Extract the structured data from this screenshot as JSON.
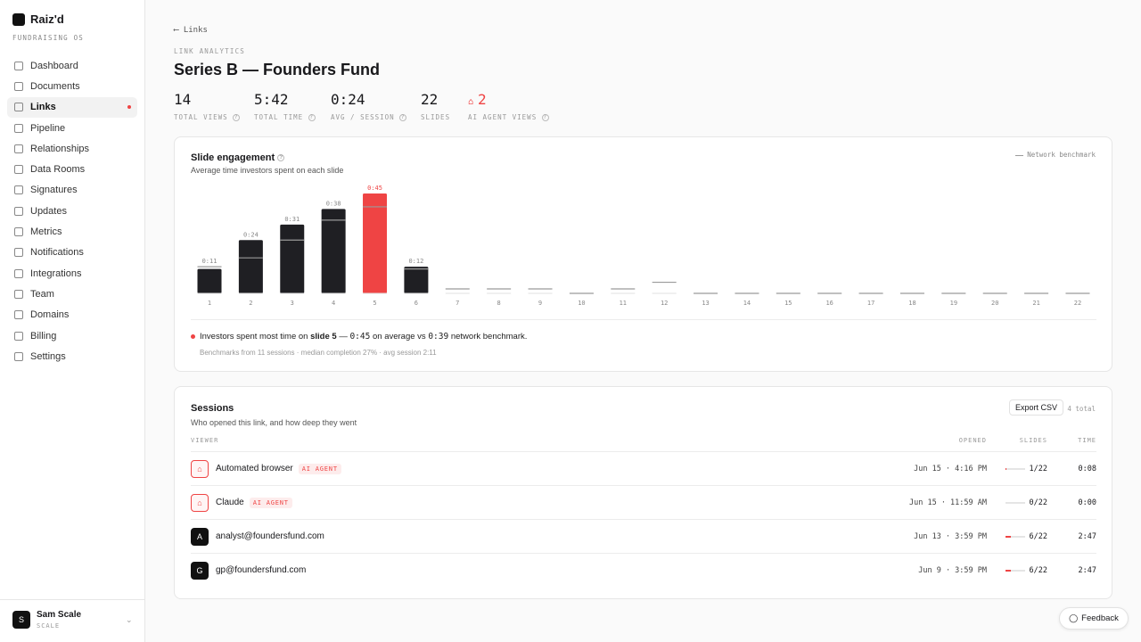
{
  "sidebar": {
    "brand": "Raiz'd",
    "tagline": "FUNDRAISING OS",
    "nav": [
      {
        "label": "Dashboard"
      },
      {
        "label": "Documents"
      },
      {
        "label": "Links",
        "active": true
      },
      {
        "label": "Pipeline"
      },
      {
        "label": "Relationships"
      },
      {
        "label": "Data Rooms"
      },
      {
        "label": "Signatures"
      },
      {
        "label": "Updates"
      },
      {
        "label": "Metrics"
      },
      {
        "label": "Notifications"
      },
      {
        "label": "Integrations"
      },
      {
        "label": "Team"
      },
      {
        "label": "Domains"
      },
      {
        "label": "Billing"
      },
      {
        "label": "Settings"
      }
    ],
    "user": {
      "initial": "S",
      "name": "Sam Scale",
      "org": "SCALE"
    }
  },
  "header": {
    "back": "Links",
    "eyebrow": "LINK ANALYTICS",
    "title": "Series B — Founders Fund"
  },
  "stats": [
    {
      "value": 14,
      "label": "TOTAL VIEWS"
    },
    {
      "value": "5:42",
      "label": "TOTAL TIME"
    },
    {
      "value": "0:24",
      "label": "AVG / SESSION"
    },
    {
      "value": 22,
      "label": "SLIDES"
    },
    {
      "value": 2,
      "label": "AI AGENT VIEWS",
      "alert": true
    }
  ],
  "chart_data": {
    "type": "bar",
    "title": "Slide engagement",
    "subtitle": "Average time investors spent on each slide",
    "categories": [
      "1",
      "2",
      "3",
      "4",
      "5",
      "6",
      "7",
      "8",
      "9",
      "10",
      "11",
      "12",
      "13",
      "14",
      "15",
      "16",
      "17",
      "18",
      "19",
      "20",
      "21",
      "22"
    ],
    "values": [
      11,
      24,
      31,
      38,
      45,
      12,
      0,
      0,
      0,
      0,
      0,
      0,
      0,
      0,
      0,
      0,
      0,
      0,
      0,
      0,
      0,
      0
    ],
    "value_labels": [
      "0:11",
      "0:24",
      "0:31",
      "0:38",
      "0:45",
      "0:12",
      null,
      null,
      null,
      null,
      null,
      null,
      null,
      null,
      null,
      null,
      null,
      null,
      null,
      null,
      null,
      null
    ],
    "color": "#1f1f23",
    "highlight_category": "5",
    "highlight_color": "#ef4444",
    "benchmark": {
      "name": "Network benchmark",
      "color": "#9a9a9a",
      "values": [
        12,
        16,
        24,
        33,
        39,
        11,
        2,
        2,
        2,
        0,
        2,
        5,
        0,
        0,
        0,
        0,
        0,
        0,
        0,
        0,
        0,
        0
      ]
    }
  },
  "insight": {
    "lead": "Investors spent most time on",
    "slide": "slide 5",
    "dash": "—",
    "time": "0:45",
    "mid": "on average vs",
    "benchmark": "0:39",
    "tail": "network benchmark.",
    "note": "Benchmarks from 11 sessions · median completion 27% · avg session 2:11"
  },
  "sessions": {
    "title": "Sessions",
    "subtitle": "Who opened this link, and how deep they went",
    "export": "Export CSV",
    "count": "4 total",
    "columns": [
      "VIEWER",
      "OPENED",
      "SLIDES",
      "TIME"
    ],
    "rows": [
      {
        "viewer": "Automated browser",
        "badge": "AI AGENT",
        "opened": "Jun 15 · 4:16 PM",
        "slides": "1/22",
        "progress": 1,
        "time": "0:08"
      },
      {
        "viewer": "Claude",
        "badge": "AI AGENT",
        "opened": "Jun 15 · 11:59 AM",
        "slides": "0/22",
        "progress": 0,
        "time": "0:00"
      },
      {
        "avatar": "A",
        "viewer": "analyst@foundersfund.com",
        "opened": "Jun 13 · 3:59 PM",
        "slides": "6/22",
        "progress": 6,
        "time": "2:47"
      },
      {
        "avatar": "G",
        "viewer": "gp@foundersfund.com",
        "opened": "Jun 9 · 3:59 PM",
        "slides": "6/22",
        "progress": 6,
        "time": "2:47"
      }
    ]
  },
  "feedback": "Feedback"
}
